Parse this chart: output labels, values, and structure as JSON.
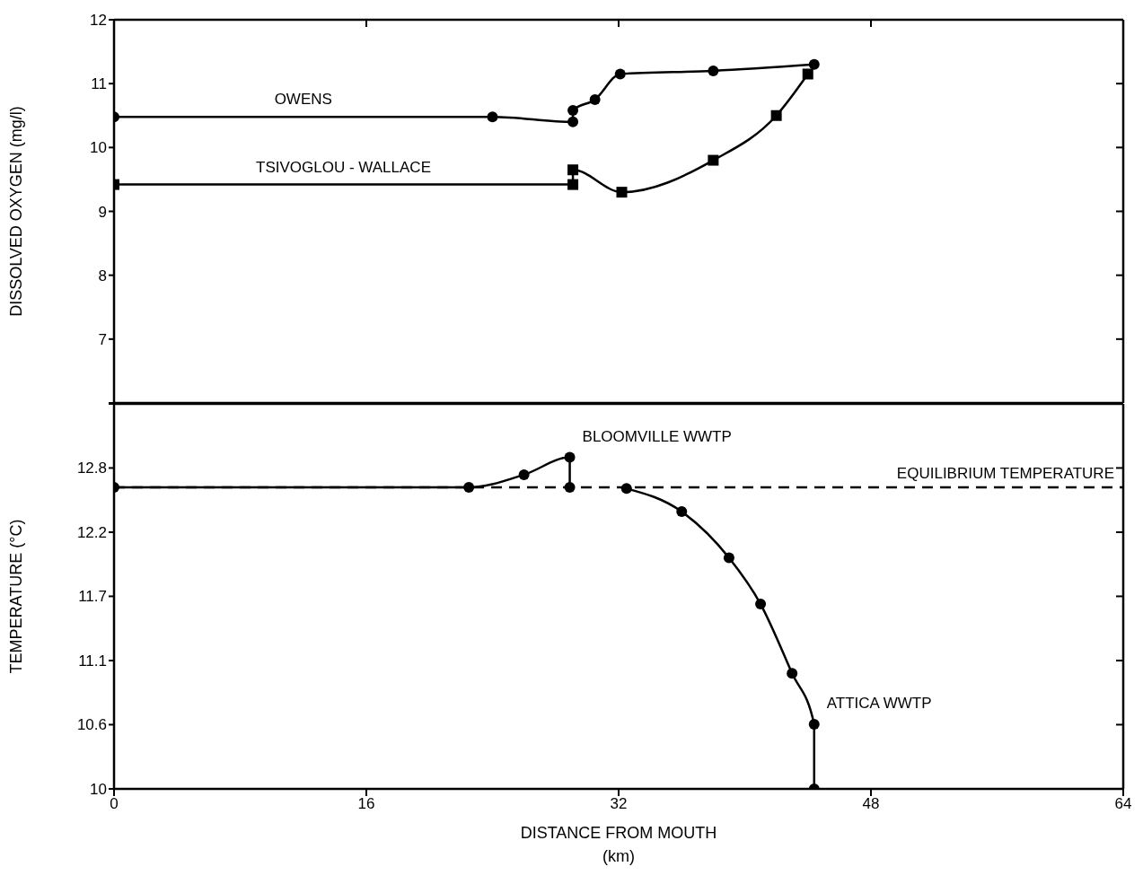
{
  "chart_data": [
    {
      "type": "line",
      "ylabel": "DISSOLVED OXYGEN (mg/l)",
      "xlim": [
        0,
        64
      ],
      "xticks": [
        0,
        16,
        32,
        48,
        64
      ],
      "ylim": [
        6,
        12
      ],
      "yticks": [
        {
          "value": 6,
          "label": null
        },
        7,
        8,
        9,
        10,
        11,
        12
      ],
      "tick_labels": "y",
      "series": [
        {
          "name": "OWENS",
          "color": "#000000",
          "marker": "circle",
          "x": [
            0,
            24,
            29.1,
            29.1,
            30.5,
            32.1,
            38,
            44.4
          ],
          "values": [
            10.48,
            10.48,
            10.4,
            10.58,
            10.75,
            11.15,
            11.2,
            11.3
          ]
        },
        {
          "name": "TSIVOGLOU - WALLACE",
          "color": "#000000",
          "marker": "square",
          "x": [
            0,
            29.1,
            29.1,
            32.2,
            38,
            42,
            44
          ],
          "values": [
            9.42,
            9.42,
            9.65,
            9.3,
            9.8,
            10.5,
            11.15
          ]
        }
      ]
    },
    {
      "type": "line",
      "ylabel": "TEMPERATURE (°C)",
      "xlabel": "DISTANCE FROM MOUTH\n(km)",
      "xlim": [
        0,
        64
      ],
      "xticks": [
        0,
        16,
        32,
        48,
        64
      ],
      "ylim": [
        10,
        13.333
      ],
      "yticks": [
        10,
        {
          "value": 10.556,
          "label": "10.6"
        },
        {
          "value": 11.111,
          "label": "11.1"
        },
        {
          "value": 11.667,
          "label": "11.7"
        },
        {
          "value": 12.222,
          "label": "12.2"
        },
        {
          "value": 12.778,
          "label": "12.8"
        },
        {
          "value": 13.333,
          "label": null
        }
      ],
      "series": [
        {
          "color": "#000000",
          "marker": "circle",
          "x": [
            0,
            22.5,
            26,
            28.9,
            28.9
          ],
          "values": [
            12.61,
            12.61,
            12.72,
            12.87,
            12.61
          ]
        },
        {
          "color": "#000000",
          "marker": "circle",
          "x": [
            32.5,
            36,
            39,
            41,
            43,
            44.4,
            44.4
          ],
          "values": [
            12.6,
            12.4,
            12.0,
            11.6,
            11.0,
            10.56,
            10.0
          ]
        }
      ],
      "ref_lines": [
        {
          "axis": "y",
          "value": 12.61,
          "label": "EQUILIBRIUM TEMPERATURE",
          "line_style": "dashed",
          "color": "#000000"
        }
      ],
      "annotations": [
        {
          "text": "BLOOMVILLE WWTP",
          "x": 28.9,
          "y": 12.87
        },
        {
          "text": "ATTICA WWTP",
          "x": 44.4,
          "y": 10.56
        }
      ]
    }
  ]
}
